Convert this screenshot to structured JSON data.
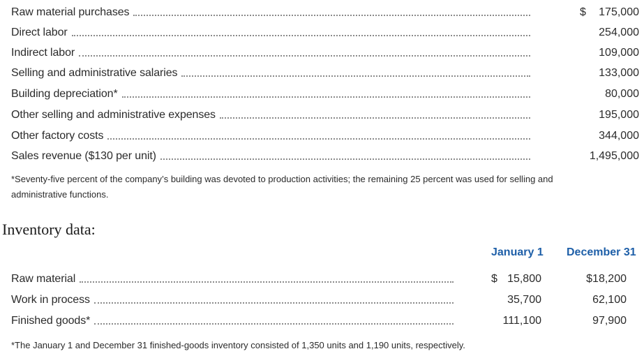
{
  "cost_items": [
    {
      "label": "Raw material purchases",
      "currency": "$",
      "amount": "175,000"
    },
    {
      "label": "Direct labor",
      "currency": "",
      "amount": "254,000"
    },
    {
      "label": "Indirect labor",
      "currency": "",
      "amount": "109,000"
    },
    {
      "label": "Selling and administrative salaries",
      "currency": "",
      "amount": "133,000"
    },
    {
      "label": "Building depreciation*",
      "currency": "",
      "amount": "80,000"
    },
    {
      "label": "Other selling and administrative expenses",
      "currency": "",
      "amount": "195,000"
    },
    {
      "label": "Other factory costs",
      "currency": "",
      "amount": "344,000"
    },
    {
      "label": "Sales revenue ($130 per unit)",
      "currency": "",
      "amount": "1,495,000"
    }
  ],
  "footnote_building": {
    "line1": "*Seventy-five percent of the company’s building was devoted to production activities; the remaining 25 percent was used for selling and",
    "line2": "administrative functions."
  },
  "inventory": {
    "title": "Inventory data:",
    "columns": [
      "January 1",
      "December 31"
    ],
    "rows": [
      {
        "label": "Raw material",
        "jan_currency": "$",
        "jan": "15,800",
        "dec": "$18,200"
      },
      {
        "label": "Work in process",
        "jan_currency": "",
        "jan": "35,700",
        "dec": "62,100"
      },
      {
        "label": "Finished goods*",
        "jan_currency": "",
        "jan": "111,100",
        "dec": "97,900"
      }
    ],
    "footnote": "*The January 1 and December 31 finished-goods inventory consisted of 1,350 units and 1,190 units, respectively."
  }
}
